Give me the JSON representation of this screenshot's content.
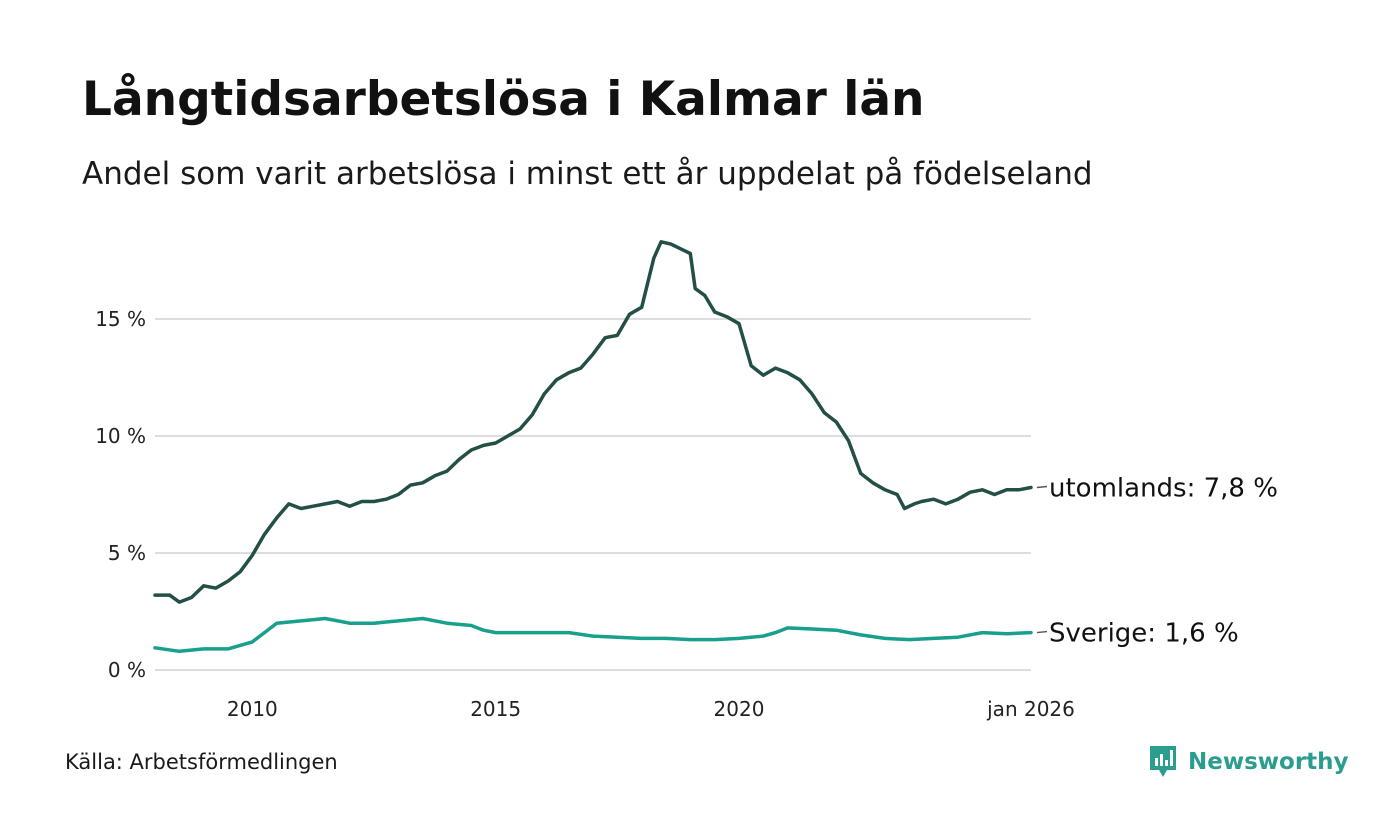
{
  "header": {
    "title": "Långtidsarbetslösa i Kalmar län",
    "subtitle": "Andel som varit arbetslösa i minst ett år uppdelat på födelseland"
  },
  "footer": {
    "source": "Källa: Arbetsförmedlingen",
    "brand": "Newsworthy",
    "brand_color": "#2a9d8f"
  },
  "chart_data": {
    "type": "line",
    "title": "Långtidsarbetslösa i Kalmar län",
    "subtitle": "Andel som varit arbetslösa i minst ett år uppdelat på födelseland",
    "xlabel": "",
    "ylabel": "",
    "xlim": [
      2008.0,
      2026.0
    ],
    "ylim": [
      0,
      19
    ],
    "grid": true,
    "x_ticks": [
      {
        "value": 2010,
        "label": "2010"
      },
      {
        "value": 2015,
        "label": "2015"
      },
      {
        "value": 2020,
        "label": "2020"
      },
      {
        "value": 2026.0,
        "label": "jan 2026"
      }
    ],
    "y_ticks": [
      {
        "value": 0,
        "label": "0 %"
      },
      {
        "value": 5,
        "label": "5 %"
      },
      {
        "value": 10,
        "label": "10 %"
      },
      {
        "value": 15,
        "label": "15 %"
      }
    ],
    "series": [
      {
        "name": "utomlands",
        "end_label": "utomlands: 7,8 %",
        "color": "#234f47",
        "points": [
          [
            2008.0,
            3.2
          ],
          [
            2008.3,
            3.2
          ],
          [
            2008.5,
            2.9
          ],
          [
            2008.75,
            3.1
          ],
          [
            2009.0,
            3.6
          ],
          [
            2009.25,
            3.5
          ],
          [
            2009.5,
            3.8
          ],
          [
            2009.75,
            4.2
          ],
          [
            2010.0,
            4.9
          ],
          [
            2010.25,
            5.8
          ],
          [
            2010.5,
            6.5
          ],
          [
            2010.75,
            7.1
          ],
          [
            2011.0,
            6.9
          ],
          [
            2011.25,
            7.0
          ],
          [
            2011.5,
            7.1
          ],
          [
            2011.75,
            7.2
          ],
          [
            2012.0,
            7.0
          ],
          [
            2012.25,
            7.2
          ],
          [
            2012.5,
            7.2
          ],
          [
            2012.75,
            7.3
          ],
          [
            2013.0,
            7.5
          ],
          [
            2013.25,
            7.9
          ],
          [
            2013.5,
            8.0
          ],
          [
            2013.75,
            8.3
          ],
          [
            2014.0,
            8.5
          ],
          [
            2014.25,
            9.0
          ],
          [
            2014.5,
            9.4
          ],
          [
            2014.75,
            9.6
          ],
          [
            2015.0,
            9.7
          ],
          [
            2015.25,
            10.0
          ],
          [
            2015.5,
            10.3
          ],
          [
            2015.75,
            10.9
          ],
          [
            2016.0,
            11.8
          ],
          [
            2016.25,
            12.4
          ],
          [
            2016.5,
            12.7
          ],
          [
            2016.75,
            12.9
          ],
          [
            2017.0,
            13.5
          ],
          [
            2017.25,
            14.2
          ],
          [
            2017.5,
            14.3
          ],
          [
            2017.75,
            15.2
          ],
          [
            2018.0,
            15.5
          ],
          [
            2018.25,
            17.6
          ],
          [
            2018.4,
            18.3
          ],
          [
            2018.6,
            18.2
          ],
          [
            2018.8,
            18.0
          ],
          [
            2019.0,
            17.8
          ],
          [
            2019.1,
            16.3
          ],
          [
            2019.3,
            16.0
          ],
          [
            2019.5,
            15.3
          ],
          [
            2019.75,
            15.1
          ],
          [
            2020.0,
            14.8
          ],
          [
            2020.25,
            13.0
          ],
          [
            2020.5,
            12.6
          ],
          [
            2020.75,
            12.9
          ],
          [
            2021.0,
            12.7
          ],
          [
            2021.25,
            12.4
          ],
          [
            2021.5,
            11.8
          ],
          [
            2021.75,
            11.0
          ],
          [
            2022.0,
            10.6
          ],
          [
            2022.25,
            9.8
          ],
          [
            2022.5,
            8.4
          ],
          [
            2022.75,
            8.0
          ],
          [
            2023.0,
            7.7
          ],
          [
            2023.25,
            7.5
          ],
          [
            2023.4,
            6.9
          ],
          [
            2023.6,
            7.1
          ],
          [
            2023.75,
            7.2
          ],
          [
            2024.0,
            7.3
          ],
          [
            2024.25,
            7.1
          ],
          [
            2024.5,
            7.3
          ],
          [
            2024.75,
            7.6
          ],
          [
            2025.0,
            7.7
          ],
          [
            2025.25,
            7.5
          ],
          [
            2025.5,
            7.7
          ],
          [
            2025.75,
            7.7
          ],
          [
            2026.0,
            7.8
          ]
        ]
      },
      {
        "name": "Sverige",
        "end_label": "Sverige: 1,6 %",
        "color": "#18a08c",
        "points": [
          [
            2008.0,
            0.95
          ],
          [
            2008.5,
            0.8
          ],
          [
            2009.0,
            0.9
          ],
          [
            2009.5,
            0.9
          ],
          [
            2010.0,
            1.2
          ],
          [
            2010.25,
            1.6
          ],
          [
            2010.5,
            2.0
          ],
          [
            2011.0,
            2.1
          ],
          [
            2011.5,
            2.2
          ],
          [
            2012.0,
            2.0
          ],
          [
            2012.5,
            2.0
          ],
          [
            2013.0,
            2.1
          ],
          [
            2013.5,
            2.2
          ],
          [
            2014.0,
            2.0
          ],
          [
            2014.5,
            1.9
          ],
          [
            2014.75,
            1.7
          ],
          [
            2015.0,
            1.6
          ],
          [
            2015.5,
            1.6
          ],
          [
            2016.0,
            1.6
          ],
          [
            2016.5,
            1.6
          ],
          [
            2017.0,
            1.45
          ],
          [
            2017.5,
            1.4
          ],
          [
            2018.0,
            1.35
          ],
          [
            2018.5,
            1.35
          ],
          [
            2019.0,
            1.3
          ],
          [
            2019.5,
            1.3
          ],
          [
            2020.0,
            1.35
          ],
          [
            2020.5,
            1.45
          ],
          [
            2020.75,
            1.6
          ],
          [
            2021.0,
            1.8
          ],
          [
            2021.5,
            1.75
          ],
          [
            2022.0,
            1.7
          ],
          [
            2022.5,
            1.5
          ],
          [
            2023.0,
            1.35
          ],
          [
            2023.5,
            1.3
          ],
          [
            2024.0,
            1.35
          ],
          [
            2024.5,
            1.4
          ],
          [
            2025.0,
            1.6
          ],
          [
            2025.5,
            1.55
          ],
          [
            2026.0,
            1.6
          ]
        ]
      }
    ]
  }
}
